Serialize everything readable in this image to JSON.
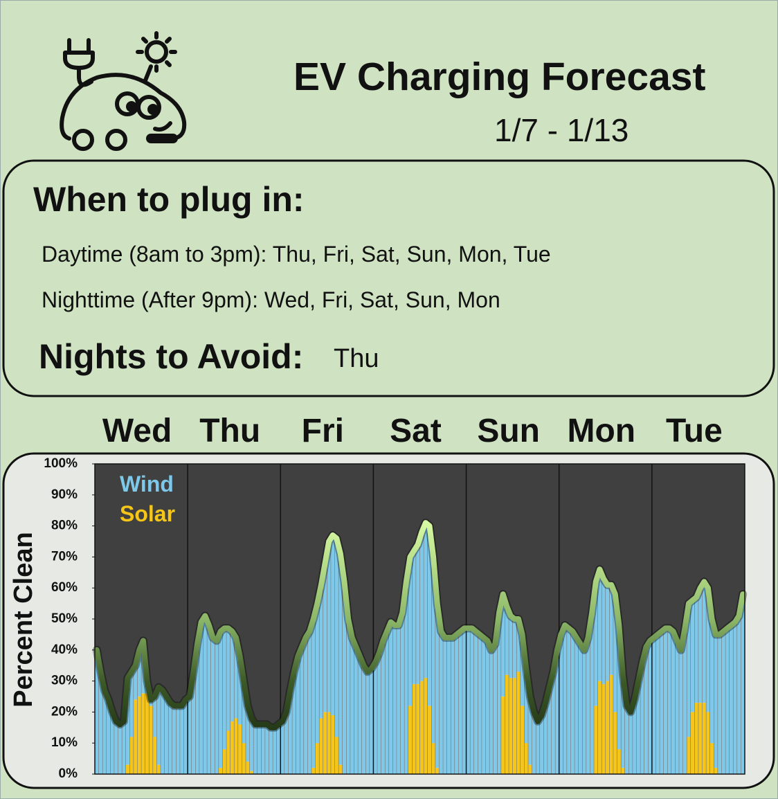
{
  "header": {
    "title": "EV Charging Forecast",
    "date_range": "1/7  - 1/13"
  },
  "recommendations": {
    "heading": "When to plug in:",
    "daytime": "Daytime (8am to 3pm): Thu, Fri, Sat, Sun, Mon, Tue",
    "nighttime": "Nighttime  (After 9pm): Wed, Fri, Sat, Sun, Mon",
    "avoid_heading": "Nights to Avoid:",
    "avoid_days": "Thu"
  },
  "chart_data": {
    "type": "stacked-bar-line",
    "y_label": "Percent Clean",
    "categories": [
      "Wed",
      "Thu",
      "Fri",
      "Sat",
      "Sun",
      "Mon",
      "Tue"
    ],
    "ylim": [
      0,
      100
    ],
    "yticks": [
      {
        "value": 0,
        "label": "0%"
      },
      {
        "value": 10,
        "label": "10%"
      },
      {
        "value": 20,
        "label": "20%"
      },
      {
        "value": 30,
        "label": "30%"
      },
      {
        "value": 40,
        "label": "40%"
      },
      {
        "value": 50,
        "label": "50%"
      },
      {
        "value": 60,
        "label": "60%"
      },
      {
        "value": 70,
        "label": "70%"
      },
      {
        "value": 80,
        "label": "80%"
      },
      {
        "value": 90,
        "label": "90%"
      },
      {
        "value": 100,
        "label": "100%"
      }
    ],
    "series": [
      {
        "name": "Solar",
        "color": "#f5c518",
        "values": [
          [
            0,
            0,
            0,
            0,
            0,
            0,
            0,
            0,
            3,
            12,
            24,
            25,
            26,
            26,
            22,
            12,
            3,
            0,
            0,
            0,
            0,
            0,
            0,
            0
          ],
          [
            0,
            0,
            0,
            0,
            0,
            0,
            0,
            0,
            2,
            8,
            14,
            17,
            18,
            16,
            10,
            4,
            1,
            0,
            0,
            0,
            0,
            0,
            0,
            0
          ],
          [
            0,
            0,
            0,
            0,
            0,
            0,
            0,
            0,
            2,
            10,
            18,
            20,
            20,
            19,
            12,
            3,
            0,
            0,
            0,
            0,
            0,
            0,
            0,
            0
          ],
          [
            0,
            0,
            0,
            0,
            0,
            0,
            0,
            0,
            0,
            22,
            29,
            29,
            30,
            31,
            22,
            10,
            2,
            0,
            0,
            0,
            0,
            0,
            0,
            0
          ],
          [
            0,
            0,
            0,
            0,
            0,
            0,
            0,
            0,
            0,
            25,
            32,
            31,
            31,
            33,
            22,
            10,
            3,
            0,
            0,
            0,
            0,
            0,
            0,
            0
          ],
          [
            0,
            0,
            0,
            0,
            0,
            0,
            0,
            0,
            0,
            22,
            30,
            29,
            30,
            32,
            20,
            8,
            2,
            0,
            0,
            0,
            0,
            0,
            0,
            0
          ],
          [
            0,
            0,
            0,
            0,
            0,
            0,
            0,
            0,
            0,
            12,
            20,
            23,
            23,
            23,
            20,
            10,
            2,
            0,
            0,
            0,
            0,
            0,
            0,
            0
          ]
        ]
      },
      {
        "name": "Wind",
        "color": "#7ec8ea",
        "values": [
          [
            40,
            33,
            27,
            24,
            20,
            17,
            16,
            17,
            28,
            21,
            11,
            15,
            17,
            4,
            2,
            13,
            25,
            27,
            25,
            23,
            22,
            22,
            22,
            24
          ],
          [
            25,
            33,
            42,
            49,
            51,
            48,
            44,
            43,
            44,
            39,
            33,
            29,
            26,
            22,
            20,
            18,
            17,
            16,
            16,
            16,
            16,
            15,
            15,
            16
          ],
          [
            17,
            20,
            27,
            33,
            38,
            41,
            44,
            46,
            48,
            45,
            43,
            48,
            55,
            58,
            64,
            68,
            62,
            50,
            44,
            41,
            38,
            35,
            33,
            34
          ],
          [
            36,
            39,
            43,
            46,
            49,
            48,
            48,
            52,
            62,
            48,
            43,
            45,
            48,
            50,
            58,
            60,
            53,
            46,
            44,
            44,
            44,
            45,
            46,
            47
          ],
          [
            47,
            47,
            46,
            45,
            44,
            43,
            40,
            42,
            52,
            33,
            22,
            20,
            19,
            17,
            23,
            24,
            22,
            20,
            17,
            19,
            23,
            28,
            33,
            40
          ],
          [
            45,
            48,
            47,
            46,
            44,
            42,
            40,
            44,
            52,
            40,
            36,
            34,
            31,
            29,
            38,
            40,
            30,
            22,
            20,
            24,
            30,
            36,
            41,
            43
          ],
          [
            44,
            45,
            46,
            47,
            47,
            46,
            43,
            40,
            47,
            43,
            36,
            34,
            37,
            39,
            40,
            40,
            43,
            45,
            46,
            47,
            48,
            49,
            51,
            58
          ]
        ]
      }
    ]
  }
}
